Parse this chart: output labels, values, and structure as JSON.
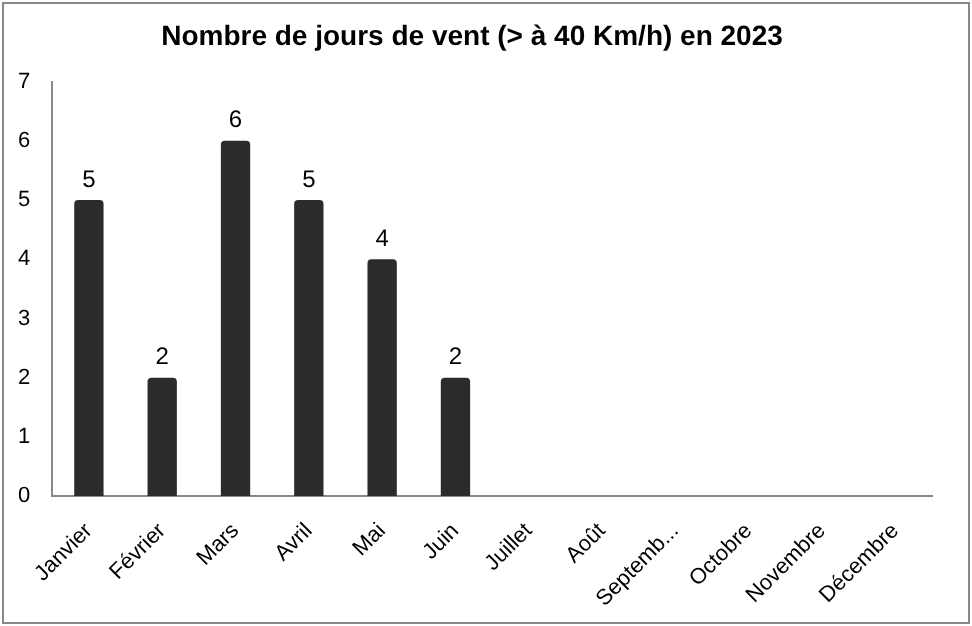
{
  "chart_data": {
    "type": "bar",
    "title": "Nombre de jours de vent (> à 40 Km/h) en 2023",
    "categories": [
      "Janvier",
      "Février",
      "Mars",
      "Avril",
      "Mai",
      "Juin",
      "Juillet",
      "Août",
      "Septemb...",
      "Octobre",
      "Novembre",
      "Décembre"
    ],
    "values": [
      5,
      2,
      6,
      5,
      4,
      2,
      null,
      null,
      null,
      null,
      null,
      null
    ],
    "color": "#2b2b2b",
    "ylim": [
      0,
      7
    ],
    "yticks": [
      0,
      1,
      2,
      3,
      4,
      5,
      6,
      7
    ],
    "grid": false,
    "legend": false,
    "data_labels": true
  }
}
